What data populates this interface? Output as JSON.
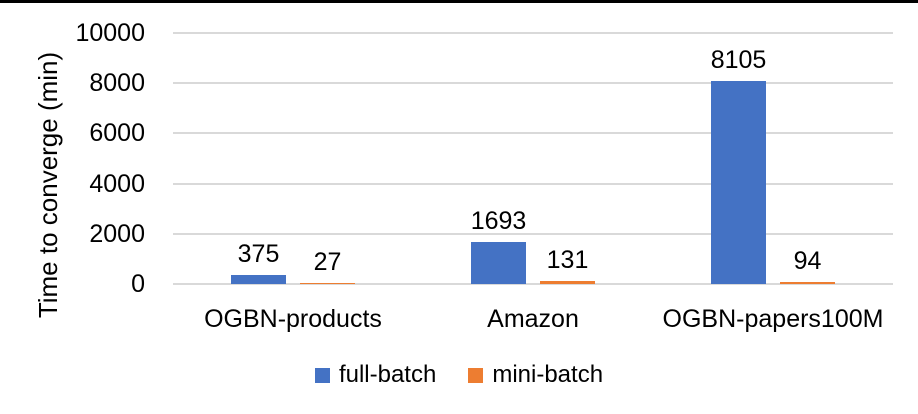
{
  "figure": {
    "top_rule_color": "#000000",
    "background_color": "#ffffff",
    "gridline_color": "#d9d9d9",
    "text_color": "#000000"
  },
  "chart_data": {
    "type": "bar",
    "title": "",
    "xlabel": "",
    "ylabel": "Time to converge (min)",
    "categories": [
      "OGBN-products",
      "Amazon",
      "OGBN-papers100M"
    ],
    "series": [
      {
        "name": "full-batch",
        "color": "#4472c4",
        "values": [
          375,
          1693,
          8105
        ]
      },
      {
        "name": "mini-batch",
        "color": "#ed7d31",
        "values": [
          27,
          131,
          94
        ]
      }
    ],
    "data_labels": {
      "full-batch": [
        "375",
        "1693",
        "8105"
      ],
      "mini-batch": [
        "27",
        "131",
        "94"
      ]
    },
    "ylim": [
      0,
      10000
    ],
    "yticks": [
      "0",
      "2000",
      "4000",
      "6000",
      "8000",
      "10000"
    ],
    "grid": true,
    "legend_position": "bottom-center"
  }
}
